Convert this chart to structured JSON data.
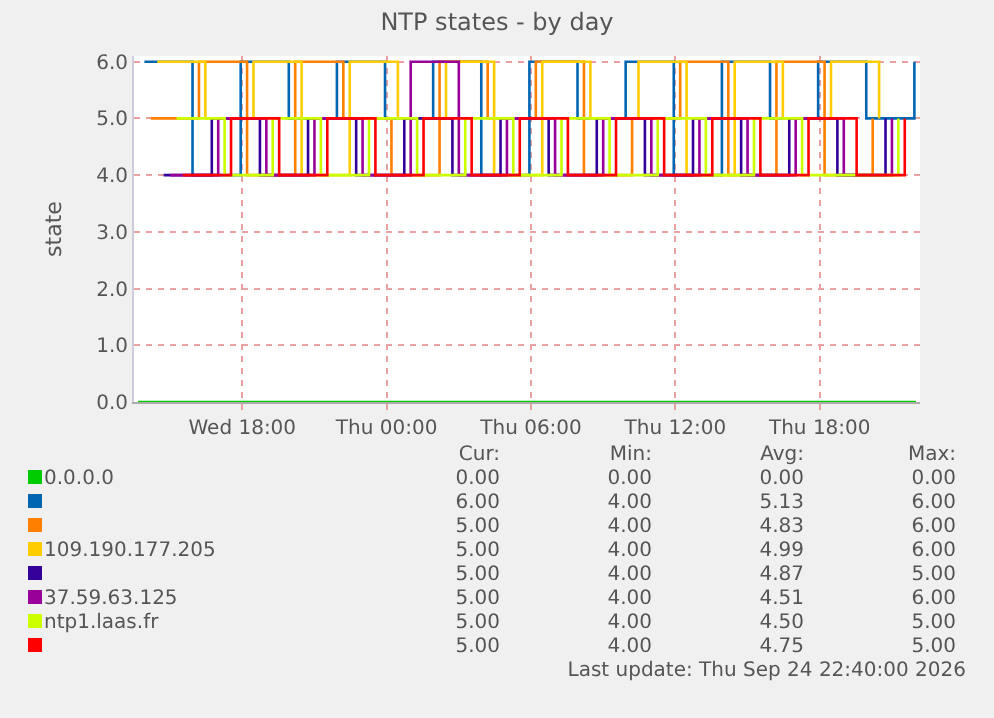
{
  "chart_data": {
    "type": "step",
    "title": "NTP states - by day",
    "ylabel": "state",
    "series": [
      {
        "name": "0.0.0.0",
        "color": "#00cc00",
        "x": [
          "2026-09-23T13:40",
          "2026-09-24T22:00"
        ],
        "values": [
          0,
          0
        ]
      },
      {
        "color": "#0066b3",
        "x": [
          "2026-09-23T13:56",
          "2026-09-23T15:56",
          "2026-09-23T17:56",
          "2026-09-23T19:56",
          "2026-09-23T21:56",
          "2026-09-23T23:56",
          "2026-09-24T01:56",
          "2026-09-24T03:56",
          "2026-09-24T05:56",
          "2026-09-24T07:56",
          "2026-09-24T09:56",
          "2026-09-24T11:56",
          "2026-09-24T13:56",
          "2026-09-24T15:56",
          "2026-09-24T17:56",
          "2026-09-24T19:56",
          "2026-09-24T21:56"
        ],
        "values": [
          6,
          4,
          6,
          5,
          6,
          5,
          6,
          4,
          6,
          5,
          6,
          4,
          6,
          5,
          6,
          5,
          6
        ]
      },
      {
        "color": "#ff8000",
        "x": [
          "2026-09-23T14:12",
          "2026-09-23T16:12",
          "2026-09-23T18:12",
          "2026-09-23T20:12",
          "2026-09-23T22:12",
          "2026-09-24T00:12",
          "2026-09-24T02:12",
          "2026-09-24T04:12",
          "2026-09-24T06:12",
          "2026-09-24T08:12",
          "2026-09-24T10:12",
          "2026-09-24T12:12",
          "2026-09-24T14:12",
          "2026-09-24T16:12",
          "2026-09-24T18:12",
          "2026-09-24T20:12"
        ],
        "values": [
          5,
          6,
          4,
          6,
          5,
          4,
          6,
          5,
          6,
          4,
          5,
          6,
          4,
          6,
          4,
          5
        ]
      },
      {
        "name": "109.190.177.205",
        "color": "#ffcc00",
        "x": [
          "2026-09-23T14:28",
          "2026-09-23T16:28",
          "2026-09-23T18:28",
          "2026-09-23T20:28",
          "2026-09-23T22:28",
          "2026-09-24T00:28",
          "2026-09-24T02:28",
          "2026-09-24T04:28",
          "2026-09-24T06:28",
          "2026-09-24T08:28",
          "2026-09-24T10:28",
          "2026-09-24T12:28",
          "2026-09-24T14:28",
          "2026-09-24T16:28",
          "2026-09-24T18:28",
          "2026-09-24T20:28"
        ],
        "values": [
          6,
          5,
          6,
          4,
          6,
          5,
          6,
          4,
          6,
          5,
          6,
          4,
          6,
          5,
          6,
          5
        ]
      },
      {
        "color": "#330099",
        "x": [
          "2026-09-23T14:44",
          "2026-09-23T16:44",
          "2026-09-23T18:44",
          "2026-09-23T20:44",
          "2026-09-23T22:44",
          "2026-09-24T00:44",
          "2026-09-24T02:44",
          "2026-09-24T04:44",
          "2026-09-24T06:44",
          "2026-09-24T08:44",
          "2026-09-24T10:44",
          "2026-09-24T12:44",
          "2026-09-24T14:44",
          "2026-09-24T16:44",
          "2026-09-24T18:44",
          "2026-09-24T20:44"
        ],
        "values": [
          4,
          5,
          4,
          5,
          4,
          5,
          4,
          5,
          4,
          5,
          4,
          5,
          4,
          5,
          4,
          5
        ]
      },
      {
        "name": "37.59.63.125",
        "color": "#990099",
        "x": [
          "2026-09-23T15:00",
          "2026-09-23T17:00",
          "2026-09-23T19:00",
          "2026-09-23T21:00",
          "2026-09-23T23:00",
          "2026-09-24T01:00",
          "2026-09-24T03:00",
          "2026-09-24T05:00",
          "2026-09-24T07:00",
          "2026-09-24T09:00",
          "2026-09-24T11:00",
          "2026-09-24T13:00",
          "2026-09-24T15:00",
          "2026-09-24T17:00",
          "2026-09-24T19:00",
          "2026-09-24T21:00"
        ],
        "values": [
          4,
          5,
          4,
          5,
          4,
          6,
          4,
          5,
          4,
          5,
          4,
          5,
          4,
          5,
          4,
          5
        ]
      },
      {
        "name": "ntp1.laas.fr",
        "color": "#ccff00",
        "x": [
          "2026-09-23T15:16",
          "2026-09-23T17:16",
          "2026-09-23T19:16",
          "2026-09-23T21:16",
          "2026-09-23T23:16",
          "2026-09-24T01:16",
          "2026-09-24T03:16",
          "2026-09-24T05:16",
          "2026-09-24T07:16",
          "2026-09-24T09:16",
          "2026-09-24T11:16",
          "2026-09-24T13:16",
          "2026-09-24T15:16",
          "2026-09-24T17:16",
          "2026-09-24T19:16",
          "2026-09-24T21:16"
        ],
        "values": [
          5,
          4,
          5,
          4,
          5,
          4,
          5,
          4,
          5,
          4,
          5,
          4,
          5,
          4,
          4,
          5
        ]
      },
      {
        "color": "#ff0000",
        "x": [
          "2026-09-23T15:32",
          "2026-09-23T17:32",
          "2026-09-23T19:32",
          "2026-09-23T21:32",
          "2026-09-23T23:32",
          "2026-09-24T01:32",
          "2026-09-24T03:32",
          "2026-09-24T05:32",
          "2026-09-24T07:32",
          "2026-09-24T09:32",
          "2026-09-24T11:32",
          "2026-09-24T13:32",
          "2026-09-24T15:32",
          "2026-09-24T17:32",
          "2026-09-24T19:32",
          "2026-09-24T21:32"
        ],
        "values": [
          4,
          5,
          4,
          5,
          4,
          5,
          4,
          5,
          4,
          5,
          4,
          5,
          4,
          5,
          4,
          5
        ]
      }
    ],
    "xlim": [
      "2026-09-23T13:30",
      "2026-09-24T22:10"
    ],
    "xticks": [
      {
        "value": "2026-09-23T18:00",
        "label": "Wed 18:00"
      },
      {
        "value": "2026-09-24T00:00",
        "label": "Thu 00:00"
      },
      {
        "value": "2026-09-24T06:00",
        "label": "Thu 06:00"
      },
      {
        "value": "2026-09-24T12:00",
        "label": "Thu 12:00"
      },
      {
        "value": "2026-09-24T18:00",
        "label": "Thu 18:00"
      }
    ],
    "ylim": [
      0,
      6.1
    ],
    "yticks": [
      {
        "value": 0,
        "label": "0.0"
      },
      {
        "value": 1,
        "label": "1.0"
      },
      {
        "value": 2,
        "label": "2.0"
      },
      {
        "value": 3,
        "label": "3.0"
      },
      {
        "value": 4,
        "label": "4.0"
      },
      {
        "value": 5,
        "label": "5.0"
      },
      {
        "value": 6,
        "label": "6.0"
      }
    ],
    "grid": true,
    "legend": "bottom",
    "annotations": [
      "Cur:",
      "Min:",
      "Avg:",
      "Max:",
      "0.00",
      "0.00",
      "0.00",
      "0.00",
      "6.00",
      "4.00",
      "5.13",
      "6.00",
      "5.00",
      "4.00",
      "4.83",
      "6.00",
      "5.00",
      "4.00",
      "4.99",
      "6.00",
      "5.00",
      "4.00",
      "4.87",
      "5.00",
      "5.00",
      "4.00",
      "4.51",
      "6.00",
      "5.00",
      "4.00",
      "4.50",
      "5.00",
      "5.00",
      "4.00",
      "4.75",
      "5.00",
      "Last update: Thu Sep 24 22:40:00 2026"
    ]
  }
}
